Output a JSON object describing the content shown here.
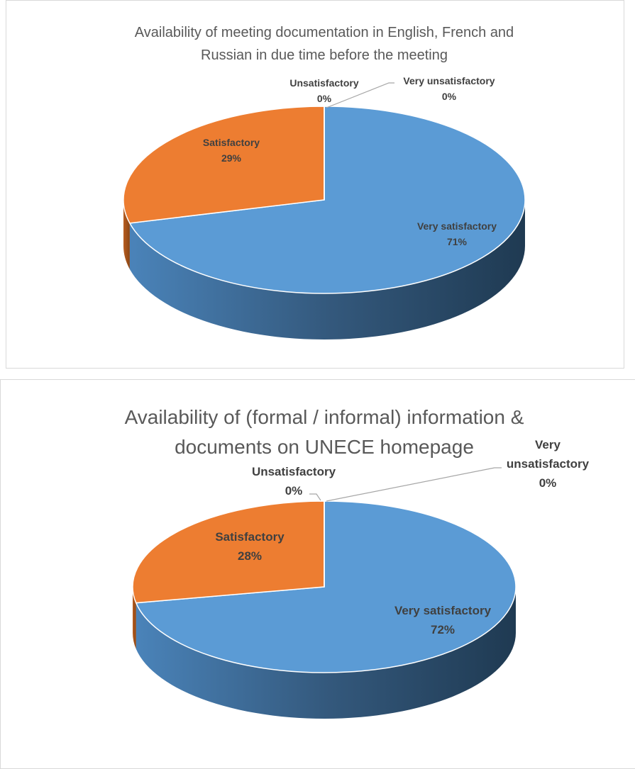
{
  "chart_data": [
    {
      "type": "pie3d",
      "title": "Availability of meeting documentation in English, French and Russian in due time before the meeting",
      "categories": [
        "Very satisfactory",
        "Satisfactory",
        "Unsatisfactory",
        "Very unsatisfactory"
      ],
      "values": [
        71,
        29,
        0,
        0
      ],
      "value_labels": [
        "71%",
        "29%",
        "0%",
        "0%"
      ],
      "colors": [
        "#5b9bd5",
        "#ed7d31",
        "#a5a5a5",
        "#ffc000"
      ]
    },
    {
      "type": "pie3d",
      "title": "Availability of (formal / informal) information & documents on UNECE homepage",
      "categories": [
        "Very satisfactory",
        "Satisfactory",
        "Unsatisfactory",
        "Very unsatisfactory"
      ],
      "values": [
        72,
        28,
        0,
        0
      ],
      "value_labels": [
        "72%",
        "28%",
        "0%",
        "0%"
      ],
      "colors": [
        "#5b9bd5",
        "#ed7d31",
        "#a5a5a5",
        "#ffc000"
      ]
    }
  ]
}
